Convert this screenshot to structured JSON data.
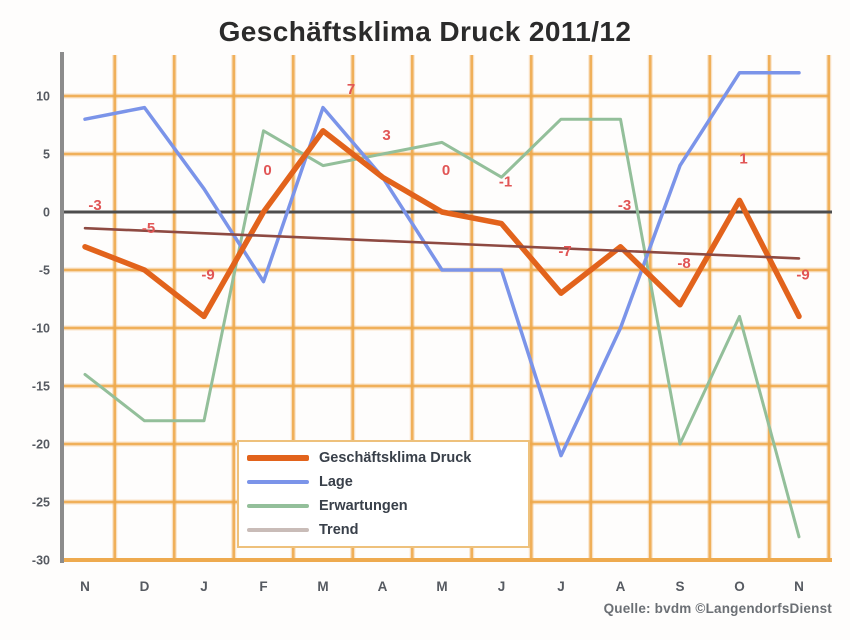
{
  "chart": {
    "title": "Geschäftsklima Druck 2011/12",
    "source": "Quelle: bvdm ©LangendorfsDienst",
    "chart_data": {
      "type": "line",
      "categories": [
        "N",
        "D",
        "J",
        "F",
        "M",
        "A",
        "M",
        "J",
        "J",
        "A",
        "S",
        "O",
        "N"
      ],
      "series": [
        {
          "name": "Geschäftsklima Druck",
          "color": "#e2631c",
          "values": [
            -3,
            -5,
            -9,
            0,
            7,
            3,
            0,
            -1,
            -7,
            -3,
            -8,
            1,
            -9
          ],
          "labeled": true,
          "data_labels": [
            "-3",
            "-5",
            "-9",
            "0",
            "7",
            "3",
            "0",
            "-1",
            "-7",
            "-3",
            "-8",
            "1",
            "-9"
          ]
        },
        {
          "name": "Lage",
          "color": "#7b94e9",
          "values": [
            8,
            9,
            2,
            -6,
            9,
            3,
            -5,
            -5,
            -21,
            -10,
            4,
            12,
            12
          ]
        },
        {
          "name": "Erwartungen",
          "color": "#93bf9a",
          "values": [
            -14,
            -18,
            -18,
            7,
            4,
            5,
            6,
            3,
            8,
            8,
            -20,
            -9,
            -28
          ]
        },
        {
          "name": "Trend",
          "color": "#8e4a42",
          "legend_color": "#c9bcb8",
          "is_trendline": true,
          "trend_endpoints": [
            -1.4,
            -4.0
          ]
        }
      ],
      "ylim": [
        -30,
        13.5
      ],
      "yticks": [
        10,
        5,
        0,
        -5,
        -10,
        -15,
        -20,
        -25,
        -30
      ],
      "grid": true,
      "grid_color": "#eeaa4e",
      "zero_line_color": "#4d4d4d",
      "axis_color": "#8c8c8c",
      "tick_label_color": "#565a61",
      "data_label_color": "#e15555",
      "legend_position": "inside-bottom-center"
    }
  }
}
